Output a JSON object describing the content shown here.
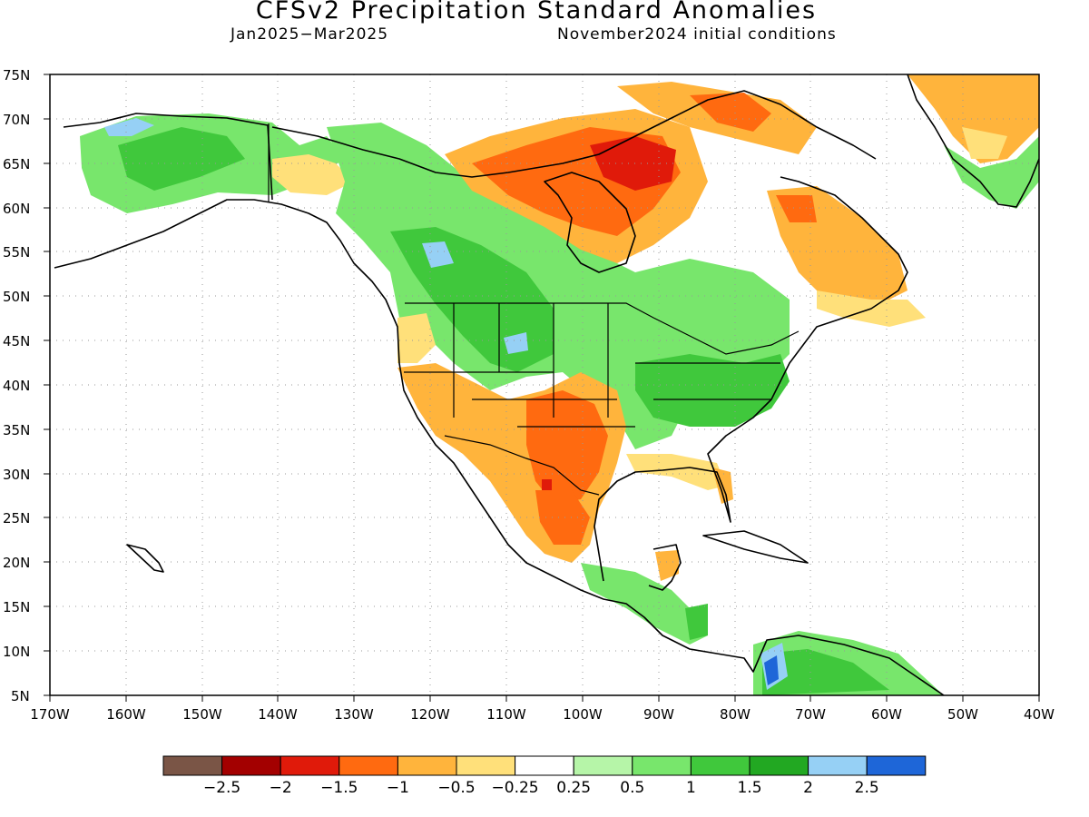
{
  "header": {
    "title": "CFSv2 Precipitation Standard Anomalies",
    "period": "Jan2025−Mar2025",
    "init": "November2024 initial conditions"
  },
  "axes": {
    "lat_labels": [
      "75N",
      "70N",
      "65N",
      "60N",
      "55N",
      "50N",
      "45N",
      "40N",
      "35N",
      "30N",
      "25N",
      "20N",
      "15N",
      "10N",
      "5N"
    ],
    "lon_labels": [
      "170W",
      "160W",
      "150W",
      "140W",
      "130W",
      "120W",
      "110W",
      "100W",
      "90W",
      "80W",
      "70W",
      "60W",
      "50W",
      "40W"
    ],
    "lat_range": [
      5,
      75
    ],
    "lon_range": [
      -170,
      -40
    ],
    "grid": "dotted"
  },
  "colorbar": {
    "colors": [
      "#7a5546",
      "#a30000",
      "#e01a0a",
      "#ff6a10",
      "#ffb43c",
      "#ffe07a",
      "#ffffff",
      "#b6f5a8",
      "#78e66c",
      "#40c83c",
      "#22a822",
      "#96d0f5",
      "#1e66d8"
    ],
    "labels": [
      "−2.5",
      "−2",
      "−1.5",
      "−1",
      "−0.5",
      "−0.25",
      "0.25",
      "0.5",
      "1",
      "1.5",
      "2",
      "2.5"
    ]
  },
  "regions": {
    "land": "#ffffff",
    "ocean": "#ffffff",
    "border": "#000000"
  }
}
